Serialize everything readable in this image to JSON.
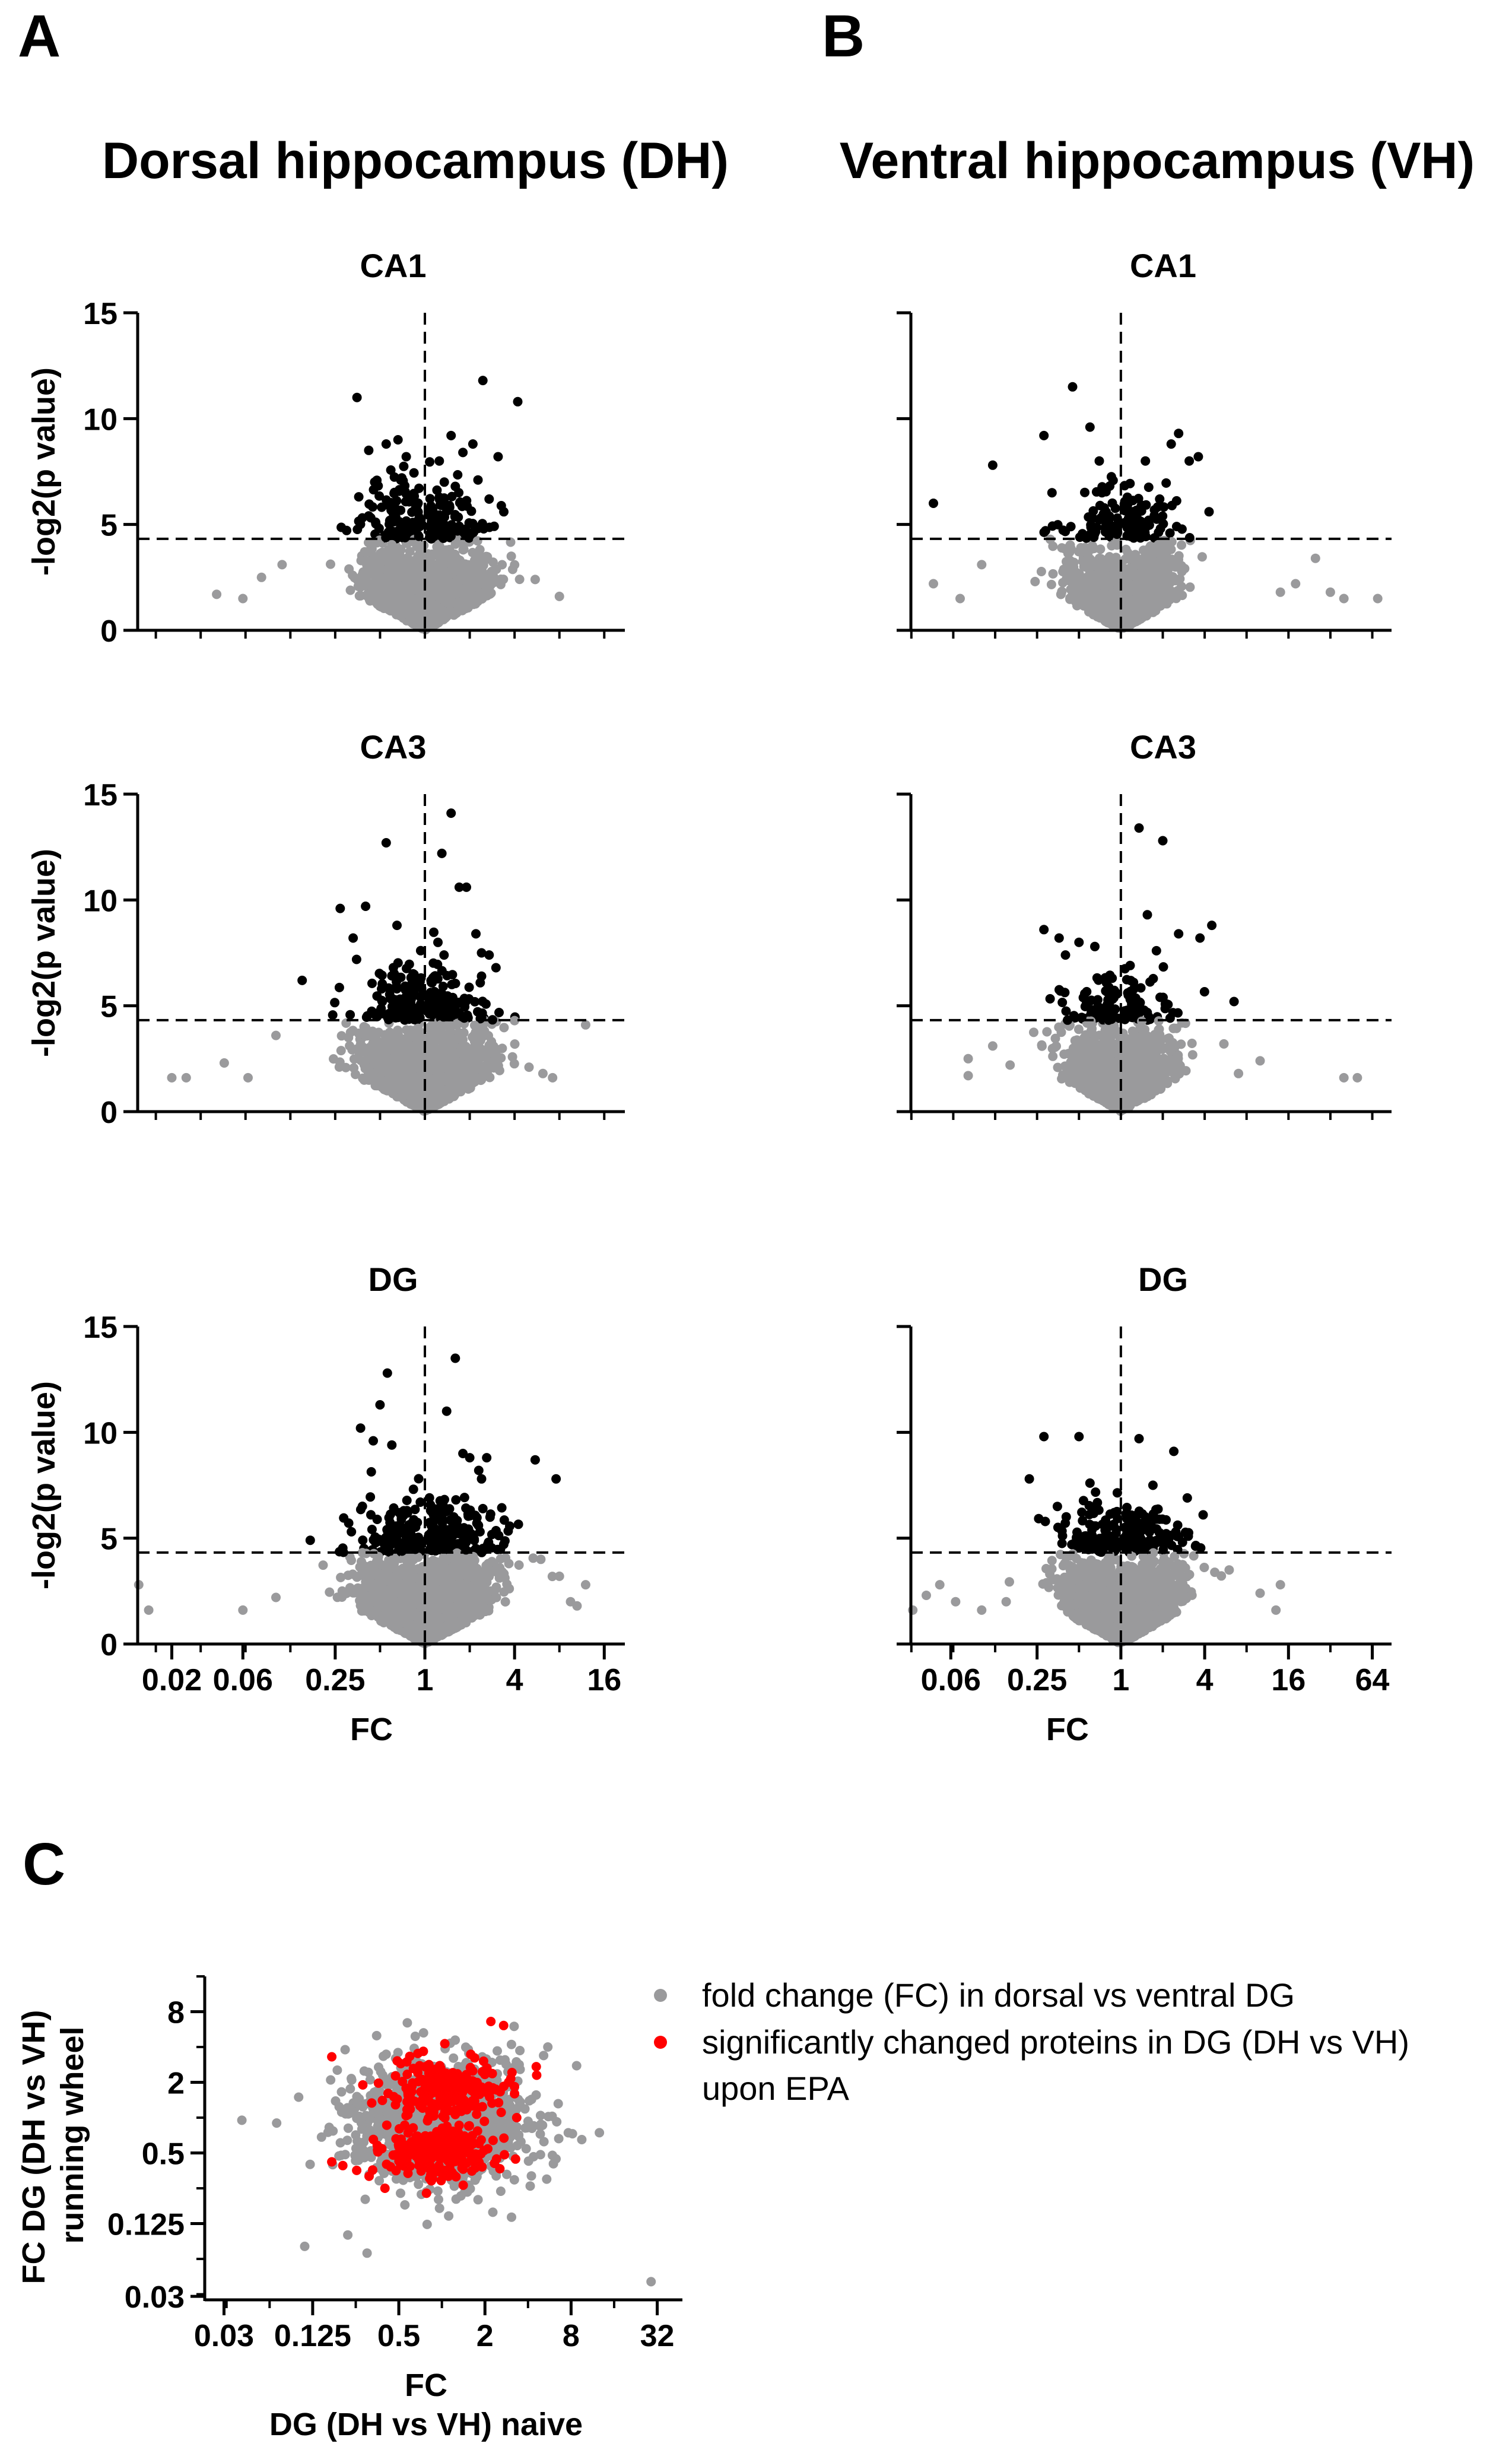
{
  "panels": {
    "A": {
      "letter": "A",
      "title": "Dorsal hippocampus (DH)"
    },
    "B": {
      "letter": "B",
      "title": "Ventral hippocampus (VH)"
    },
    "C": {
      "letter": "C"
    }
  },
  "colors": {
    "significant": "#000000",
    "nonsignificant": "#9a9a9c",
    "highlight": "#ff0000",
    "reference": "#9a9a9c"
  },
  "chart_data": [
    {
      "id": "dh-ca1",
      "type": "scatter",
      "title": "CA1",
      "ylabel": "-log2(p value)",
      "xlabel": "",
      "xscale": "log2",
      "xlim": [
        0.0118,
        22
      ],
      "ylim": [
        0,
        15
      ],
      "yticks": [
        0,
        5,
        10,
        15
      ],
      "xticks": [],
      "threshold_y": 4.32,
      "reference_x": 1,
      "spread_x": 0.65,
      "n_points": 1700,
      "significant_points": [
        [
          0.35,
          11.0
        ],
        [
          0.42,
          8.5
        ],
        [
          0.55,
          8.8
        ],
        [
          0.66,
          9.0
        ],
        [
          0.75,
          8.2
        ],
        [
          1.25,
          8.0
        ],
        [
          1.5,
          9.2
        ],
        [
          1.8,
          8.4
        ],
        [
          2.1,
          8.8
        ],
        [
          2.45,
          11.8
        ],
        [
          4.2,
          10.8
        ],
        [
          3.1,
          8.2
        ],
        [
          0.7,
          7.2
        ],
        [
          0.46,
          7.0
        ],
        [
          1.35,
          7.0
        ],
        [
          1.6,
          6.8
        ],
        [
          2.7,
          6.2
        ]
      ],
      "notable_gray_points": [
        [
          0.04,
          1.7
        ],
        [
          0.06,
          1.5
        ],
        [
          0.08,
          2.5
        ],
        [
          0.11,
          3.1
        ],
        [
          3.8,
          3.5
        ],
        [
          5.5,
          2.4
        ],
        [
          8.0,
          1.6
        ]
      ]
    },
    {
      "id": "vh-ca1",
      "type": "scatter",
      "title": "CA1",
      "ylabel": "",
      "xlabel": "",
      "xscale": "log2",
      "xlim": [
        0.031,
        88
      ],
      "ylim": [
        0,
        15
      ],
      "yticks": [],
      "xticks": [],
      "threshold_y": 4.32,
      "reference_x": 1,
      "spread_x": 0.6,
      "n_points": 1300,
      "significant_points": [
        [
          0.045,
          6.0
        ],
        [
          0.12,
          7.8
        ],
        [
          0.28,
          9.2
        ],
        [
          0.45,
          11.5
        ],
        [
          0.6,
          9.6
        ],
        [
          0.7,
          8.0
        ],
        [
          1.5,
          8.0
        ],
        [
          2.3,
          8.8
        ],
        [
          2.6,
          9.3
        ],
        [
          3.1,
          8.0
        ],
        [
          3.6,
          8.2
        ],
        [
          4.3,
          5.6
        ],
        [
          0.32,
          6.5
        ],
        [
          1.9,
          6.2
        ]
      ],
      "notable_gray_points": [
        [
          0.045,
          2.2
        ],
        [
          0.07,
          1.5
        ],
        [
          0.1,
          3.1
        ],
        [
          14.0,
          1.8
        ],
        [
          18.0,
          2.2
        ],
        [
          25.0,
          3.4
        ],
        [
          40.0,
          1.5
        ],
        [
          70.0,
          1.5
        ],
        [
          32.0,
          1.8
        ]
      ]
    },
    {
      "id": "dh-ca3",
      "type": "scatter",
      "title": "CA3",
      "ylabel": "-log2(p value)",
      "xlabel": "",
      "xscale": "log2",
      "xlim": [
        0.0118,
        22
      ],
      "ylim": [
        0,
        15
      ],
      "yticks": [
        0,
        5,
        10,
        15
      ],
      "xticks": [],
      "threshold_y": 4.32,
      "reference_x": 1,
      "spread_x": 0.65,
      "n_points": 1700,
      "significant_points": [
        [
          0.15,
          6.2
        ],
        [
          0.27,
          9.6
        ],
        [
          0.4,
          9.7
        ],
        [
          0.55,
          12.7
        ],
        [
          0.65,
          8.8
        ],
        [
          1.5,
          14.1
        ],
        [
          1.7,
          10.6
        ],
        [
          1.9,
          10.6
        ],
        [
          2.2,
          8.4
        ],
        [
          2.7,
          7.4
        ],
        [
          3.0,
          6.8
        ],
        [
          0.33,
          8.2
        ],
        [
          1.3,
          12.2
        ],
        [
          2.4,
          7.5
        ]
      ],
      "notable_gray_points": [
        [
          0.02,
          1.6
        ],
        [
          0.025,
          1.6
        ],
        [
          0.045,
          2.3
        ],
        [
          0.065,
          1.6
        ],
        [
          0.1,
          3.6
        ],
        [
          4.0,
          4.3
        ],
        [
          5.0,
          2.1
        ],
        [
          6.2,
          1.8
        ],
        [
          7.2,
          1.6
        ],
        [
          12.0,
          4.1
        ]
      ]
    },
    {
      "id": "vh-ca3",
      "type": "scatter",
      "title": "CA3",
      "ylabel": "",
      "xlabel": "",
      "xscale": "log2",
      "xlim": [
        0.031,
        88
      ],
      "ylim": [
        0,
        15
      ],
      "yticks": [],
      "xticks": [],
      "threshold_y": 4.32,
      "reference_x": 1,
      "spread_x": 0.6,
      "n_points": 1300,
      "significant_points": [
        [
          0.28,
          8.6
        ],
        [
          0.36,
          8.2
        ],
        [
          0.5,
          8.0
        ],
        [
          0.65,
          7.8
        ],
        [
          1.35,
          13.4
        ],
        [
          1.55,
          9.3
        ],
        [
          2.0,
          12.8
        ],
        [
          2.6,
          8.4
        ],
        [
          3.7,
          8.2
        ],
        [
          4.5,
          8.8
        ],
        [
          6.5,
          5.2
        ],
        [
          0.4,
          7.4
        ],
        [
          1.8,
          7.6
        ]
      ],
      "notable_gray_points": [
        [
          0.08,
          2.5
        ],
        [
          0.08,
          1.7
        ],
        [
          0.12,
          3.1
        ],
        [
          0.16,
          2.2
        ],
        [
          5.5,
          3.2
        ],
        [
          7.0,
          1.8
        ],
        [
          40.0,
          1.6
        ],
        [
          50.0,
          1.6
        ],
        [
          10.0,
          2.4
        ]
      ]
    },
    {
      "id": "dh-dg",
      "type": "scatter",
      "title": "DG",
      "ylabel": "-log2(p value)",
      "xlabel": "FC",
      "xscale": "log2",
      "xlim": [
        0.0118,
        22
      ],
      "ylim": [
        0,
        15
      ],
      "yticks": [
        0,
        5,
        10,
        15
      ],
      "xticks": [
        0.02,
        0.06,
        0.25,
        1,
        4,
        16
      ],
      "xtick_labels": [
        "0.02",
        "0.06",
        "0.25",
        "1",
        "4",
        "16"
      ],
      "threshold_y": 4.32,
      "reference_x": 1,
      "spread_x": 0.7,
      "n_points": 2200,
      "significant_points": [
        [
          0.17,
          4.9
        ],
        [
          0.37,
          10.2
        ],
        [
          0.5,
          11.3
        ],
        [
          0.56,
          12.8
        ],
        [
          0.6,
          9.4
        ],
        [
          1.6,
          13.5
        ],
        [
          1.8,
          9.0
        ],
        [
          2.0,
          8.8
        ],
        [
          2.3,
          8.2
        ],
        [
          2.6,
          8.8
        ],
        [
          5.5,
          8.7
        ],
        [
          7.6,
          7.8
        ],
        [
          0.45,
          9.6
        ],
        [
          1.4,
          11.0
        ],
        [
          2.4,
          7.8
        ]
      ],
      "notable_gray_points": [
        [
          0.012,
          2.8
        ],
        [
          0.014,
          1.6
        ],
        [
          0.06,
          1.6
        ],
        [
          0.1,
          2.2
        ],
        [
          6.0,
          4.0
        ],
        [
          8.0,
          3.2
        ],
        [
          9.5,
          2.0
        ],
        [
          10.5,
          1.8
        ],
        [
          12.0,
          2.8
        ]
      ]
    },
    {
      "id": "vh-dg",
      "type": "scatter",
      "title": "DG",
      "ylabel": "",
      "xlabel": "FC",
      "xscale": "log2",
      "xlim": [
        0.031,
        88
      ],
      "ylim": [
        0,
        15
      ],
      "yticks": [],
      "xticks": [
        0.06,
        0.25,
        1,
        4,
        16,
        64
      ],
      "xtick_labels": [
        "0.06",
        "0.25",
        "1",
        "4",
        "16",
        "64"
      ],
      "threshold_y": 4.32,
      "reference_x": 1,
      "spread_x": 0.65,
      "n_points": 2000,
      "significant_points": [
        [
          0.22,
          7.8
        ],
        [
          0.28,
          9.8
        ],
        [
          0.5,
          9.8
        ],
        [
          0.6,
          7.6
        ],
        [
          1.35,
          9.7
        ],
        [
          1.7,
          7.5
        ],
        [
          2.4,
          9.1
        ],
        [
          3.0,
          6.9
        ],
        [
          3.9,
          6.1
        ],
        [
          0.35,
          6.5
        ],
        [
          1.8,
          5.9
        ]
      ],
      "notable_gray_points": [
        [
          0.032,
          1.6
        ],
        [
          0.04,
          2.3
        ],
        [
          0.05,
          2.8
        ],
        [
          0.065,
          2.0
        ],
        [
          0.1,
          1.6
        ],
        [
          0.15,
          2.0
        ],
        [
          6.0,
          3.5
        ],
        [
          10.0,
          2.4
        ],
        [
          13.0,
          1.6
        ],
        [
          14.0,
          2.8
        ]
      ]
    },
    {
      "id": "dg-dh-vs-vh",
      "type": "scatter",
      "title": "",
      "xlabel": "FC",
      "xlabel2": "DG (DH vs VH) naive",
      "ylabel": "FC DG (DH vs VH)",
      "ylabel2": "running wheel",
      "xscale": "log2",
      "yscale": "log2",
      "xlim": [
        0.022,
        48
      ],
      "ylim": [
        0.028,
        16
      ],
      "xticks": [
        0.03,
        0.125,
        0.5,
        2,
        8,
        32
      ],
      "xtick_labels": [
        "0.03",
        "0.125",
        "0.5",
        "2",
        "8",
        "32"
      ],
      "yticks": [
        0.03,
        0.125,
        0.5,
        2,
        8
      ],
      "ytick_labels": [
        "0.03",
        "0.125",
        "0.5",
        "2",
        "8"
      ],
      "n_points": 1500,
      "n_red_up": 220,
      "n_red_down": 220,
      "notable_gray_points": [
        [
          0.04,
          0.95
        ],
        [
          0.07,
          0.9
        ],
        [
          0.11,
          0.08
        ],
        [
          0.16,
          0.75
        ],
        [
          0.12,
          0.4
        ],
        [
          0.22,
          0.1
        ],
        [
          0.3,
          0.07
        ],
        [
          0.35,
          5.0
        ],
        [
          9.5,
          0.65
        ],
        [
          29.0,
          0.04
        ],
        [
          3.2,
          6.0
        ],
        [
          5.5,
          4.0
        ]
      ],
      "notable_red_points": [
        [
          0.17,
          3.3
        ],
        [
          0.17,
          0.42
        ],
        [
          2.2,
          6.6
        ],
        [
          2.7,
          6.1
        ],
        [
          4.6,
          2.3
        ],
        [
          0.28,
          1.9
        ],
        [
          0.4,
          0.25
        ]
      ],
      "legend": [
        {
          "label": "fold change (FC) in dorsal vs ventral DG",
          "color": "#9a9a9c"
        },
        {
          "label": "significantly changed proteins in DG (DH vs VH)",
          "label_cont": "upon EPA",
          "color": "#ff0000"
        }
      ]
    }
  ]
}
